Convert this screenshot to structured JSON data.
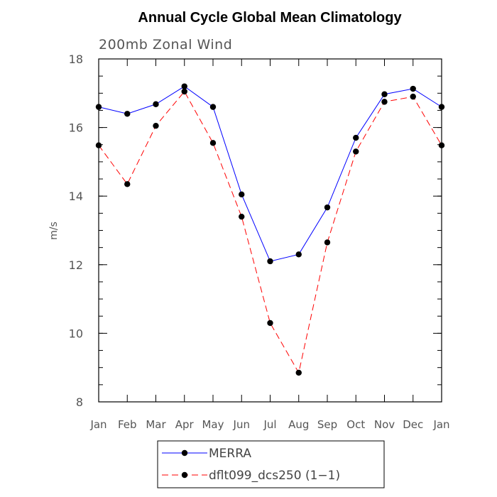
{
  "chart_data": {
    "type": "line",
    "title": "Annual Cycle Global Mean Climatology",
    "subtitle": "200mb Zonal Wind",
    "xlabel": "",
    "ylabel": "m/s",
    "categories": [
      "Jan",
      "Feb",
      "Mar",
      "Apr",
      "May",
      "Jun",
      "Jul",
      "Aug",
      "Sep",
      "Oct",
      "Nov",
      "Dec",
      "Jan"
    ],
    "ylim": [
      8,
      18
    ],
    "yticks": [
      8,
      10,
      12,
      14,
      16,
      18
    ],
    "ytick_labels": [
      "8",
      "10",
      "12",
      "14",
      "16",
      "18"
    ],
    "yminor_step": 0.5,
    "grid": false,
    "legend_position": "bottom-center",
    "series": [
      {
        "name": "MERRA",
        "color": "#0000ff",
        "line_style": "solid",
        "marker": "circle",
        "values": [
          16.6,
          16.4,
          16.68,
          17.2,
          16.6,
          14.05,
          12.1,
          12.3,
          13.67,
          15.7,
          16.97,
          17.13,
          16.6
        ]
      },
      {
        "name": "dflt099_dcs250 (1−1)",
        "color": "#ff0000",
        "line_style": "dashed",
        "marker": "circle",
        "values": [
          15.48,
          14.35,
          16.05,
          17.05,
          15.55,
          13.4,
          10.3,
          8.85,
          12.65,
          15.3,
          16.75,
          16.9,
          15.48
        ]
      }
    ]
  }
}
